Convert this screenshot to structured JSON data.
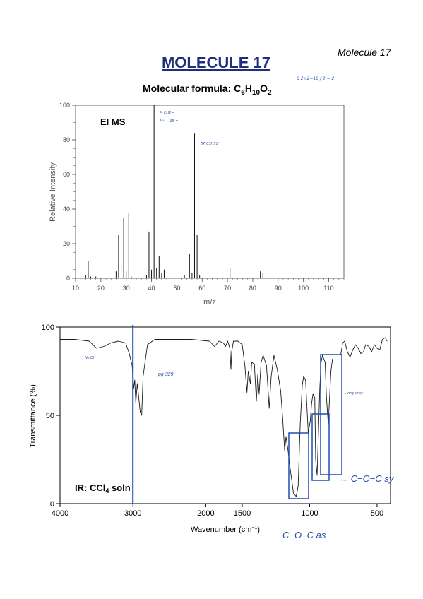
{
  "header": {
    "corner_label": "Molecule 17",
    "title": "MOLECULE 17",
    "formula_prefix": "Molecular formula: C",
    "formula_c": "6",
    "formula_h_letter": "H",
    "formula_h": "10",
    "formula_o_letter": "O",
    "formula_o": "2",
    "handwritten_calc": "6·2+2−10 / 2 = 2"
  },
  "chart_data": [
    {
      "type": "bar",
      "title": "EI MS",
      "xlabel": "m/z",
      "ylabel": "Relative Intensity",
      "xlim": [
        10,
        116
      ],
      "ylim": [
        0,
        100
      ],
      "x_ticks": [
        10,
        20,
        30,
        40,
        50,
        60,
        70,
        80,
        90,
        100,
        110
      ],
      "y_ticks": [
        0,
        20,
        40,
        60,
        80,
        100
      ],
      "peaks": [
        {
          "mz": 14,
          "intensity": 2
        },
        {
          "mz": 15,
          "intensity": 10
        },
        {
          "mz": 16,
          "intensity": 1
        },
        {
          "mz": 18,
          "intensity": 1
        },
        {
          "mz": 26,
          "intensity": 4
        },
        {
          "mz": 27,
          "intensity": 25
        },
        {
          "mz": 28,
          "intensity": 7
        },
        {
          "mz": 29,
          "intensity": 35
        },
        {
          "mz": 30,
          "intensity": 4
        },
        {
          "mz": 31,
          "intensity": 38
        },
        {
          "mz": 32,
          "intensity": 1
        },
        {
          "mz": 38,
          "intensity": 2
        },
        {
          "mz": 39,
          "intensity": 27
        },
        {
          "mz": 40,
          "intensity": 5
        },
        {
          "mz": 41,
          "intensity": 100
        },
        {
          "mz": 42,
          "intensity": 6
        },
        {
          "mz": 43,
          "intensity": 13
        },
        {
          "mz": 44,
          "intensity": 3
        },
        {
          "mz": 45,
          "intensity": 5
        },
        {
          "mz": 53,
          "intensity": 2
        },
        {
          "mz": 55,
          "intensity": 14
        },
        {
          "mz": 56,
          "intensity": 3
        },
        {
          "mz": 57,
          "intensity": 84
        },
        {
          "mz": 58,
          "intensity": 25
        },
        {
          "mz": 59,
          "intensity": 2
        },
        {
          "mz": 69,
          "intensity": 2
        },
        {
          "mz": 71,
          "intensity": 6
        },
        {
          "mz": 83,
          "intensity": 4
        },
        {
          "mz": 84,
          "intensity": 3
        }
      ],
      "handwritten_annotations": [
        "M CH2=",
        "M⁺ − 15 =",
        "57 C3H5O⁺"
      ]
    },
    {
      "type": "line",
      "title": "IR: CCl",
      "title_subscript": "4",
      "title_suffix": " soln",
      "xlabel": "Wavenumber (cm",
      "xlabel_superscript": "−1",
      "xlabel_suffix": ")",
      "ylabel": "Transmittance (%)",
      "xlim": [
        4000,
        400
      ],
      "ylim": [
        0,
        100
      ],
      "x_ticks": [
        4000,
        3000,
        2000,
        1500,
        1000,
        500
      ],
      "y_ticks": [
        0,
        50,
        100
      ],
      "marker_line_x": 3000,
      "color": "#1a1a1a",
      "marker_color": "#1f4fb0",
      "segments": [
        [
          [
            4000,
            93
          ],
          [
            3800,
            93
          ],
          [
            3600,
            92
          ],
          [
            3500,
            88
          ],
          [
            3400,
            89
          ],
          [
            3300,
            91
          ],
          [
            3200,
            92
          ],
          [
            3100,
            91
          ],
          [
            3050,
            85
          ],
          [
            3010,
            78
          ],
          [
            2990,
            65
          ],
          [
            2975,
            70
          ],
          [
            2960,
            57
          ],
          [
            2940,
            68
          ],
          [
            2920,
            60
          ],
          [
            2900,
            52
          ],
          [
            2880,
            50
          ],
          [
            2860,
            72
          ],
          [
            2800,
            90
          ],
          [
            2700,
            93
          ],
          [
            2500,
            93
          ],
          [
            2200,
            93
          ],
          [
            1950,
            92
          ],
          [
            1880,
            89
          ],
          [
            1820,
            92
          ],
          [
            1760,
            91
          ],
          [
            1730,
            89
          ],
          [
            1700,
            92
          ],
          [
            1670,
            88
          ],
          [
            1655,
            76
          ],
          [
            1645,
            86
          ],
          [
            1620,
            92
          ],
          [
            1560,
            92
          ],
          [
            1500,
            90
          ],
          [
            1480,
            78
          ],
          [
            1465,
            63
          ],
          [
            1455,
            75
          ],
          [
            1440,
            68
          ],
          [
            1430,
            80
          ],
          [
            1410,
            79
          ],
          [
            1395,
            58
          ],
          [
            1385,
            73
          ],
          [
            1375,
            62
          ],
          [
            1360,
            80
          ],
          [
            1345,
            84
          ],
          [
            1320,
            78
          ],
          [
            1300,
            54
          ],
          [
            1285,
            72
          ],
          [
            1265,
            84
          ],
          [
            1240,
            76
          ],
          [
            1215,
            64
          ],
          [
            1200,
            48
          ],
          [
            1185,
            30
          ],
          [
            1175,
            38
          ],
          [
            1160,
            30
          ],
          [
            1145,
            20
          ],
          [
            1130,
            12
          ],
          [
            1120,
            6
          ],
          [
            1100,
            4
          ],
          [
            1085,
            10
          ],
          [
            1070,
            45
          ],
          [
            1055,
            67
          ],
          [
            1045,
            72
          ],
          [
            1030,
            70
          ],
          [
            1020,
            55
          ],
          [
            1010,
            40
          ],
          [
            995,
            47
          ],
          [
            985,
            57
          ],
          [
            975,
            62
          ],
          [
            962,
            60
          ],
          [
            955,
            25
          ],
          [
            945,
            16
          ],
          [
            935,
            40
          ],
          [
            925,
            65
          ],
          [
            915,
            80
          ],
          [
            905,
            84
          ],
          [
            895,
            82
          ],
          [
            885,
            80
          ],
          [
            875,
            60
          ],
          [
            862,
            45
          ],
          [
            852,
            60
          ],
          [
            842,
            75
          ],
          [
            830,
            82
          ]
        ],
        [
          [
            770,
            84
          ],
          [
            755,
            91
          ],
          [
            740,
            92
          ],
          [
            720,
            86
          ],
          [
            700,
            83
          ],
          [
            680,
            87
          ],
          [
            660,
            90
          ],
          [
            640,
            88
          ],
          [
            620,
            85
          ],
          [
            600,
            86
          ],
          [
            585,
            90
          ],
          [
            560,
            89
          ],
          [
            540,
            86
          ],
          [
            520,
            90
          ],
          [
            500,
            88
          ],
          [
            480,
            87
          ],
          [
            460,
            93
          ],
          [
            440,
            94
          ],
          [
            425,
            92
          ]
        ]
      ],
      "handwritten_annotations": [
        "No OH",
        "pg 329",
        "→ C−O−C sy",
        "C−O−C as",
        "→ ring str sy"
      ]
    }
  ]
}
